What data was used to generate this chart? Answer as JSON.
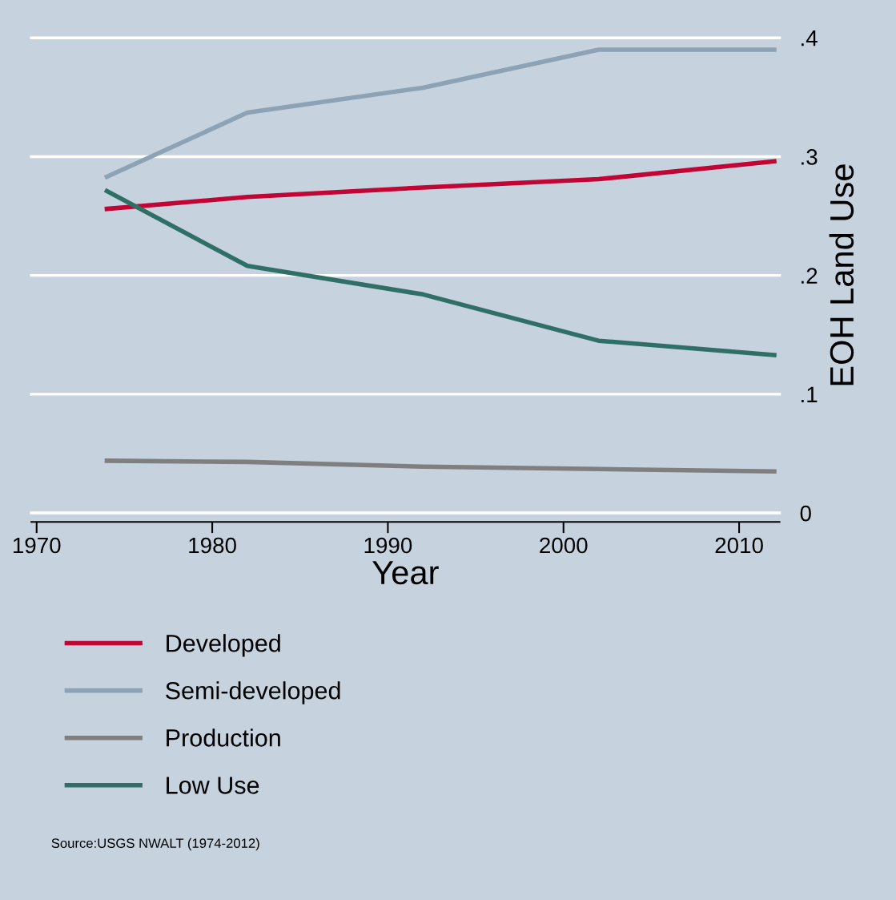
{
  "chart_data": {
    "type": "line",
    "xlabel": "Year",
    "ylabel": "EOH Land Use",
    "x": [
      1974,
      1982,
      1992,
      2002,
      2012
    ],
    "series": [
      {
        "name": "Developed",
        "color": "#c10534",
        "values": [
          0.256,
          0.266,
          0.274,
          0.281,
          0.296
        ]
      },
      {
        "name": "Semi-developed",
        "color": "#8da2b5",
        "values": [
          0.283,
          0.337,
          0.358,
          0.39,
          0.39
        ]
      },
      {
        "name": "Production",
        "color": "#7f7f7f",
        "values": [
          0.044,
          0.043,
          0.039,
          0.037,
          0.035
        ]
      },
      {
        "name": "Low Use",
        "color": "#2f6f66",
        "values": [
          0.271,
          0.208,
          0.184,
          0.145,
          0.133
        ]
      }
    ],
    "xlim": [
      1969.7,
      2012.3
    ],
    "xticks": [
      1970,
      1980,
      1990,
      2000,
      2010
    ],
    "ylim": [
      0,
      0.4
    ],
    "yticks": [
      {
        "value": 0,
        "label": "0"
      },
      {
        "value": 0.1,
        "label": ".1"
      },
      {
        "value": 0.2,
        "label": ".2"
      },
      {
        "value": 0.3,
        "label": ".3"
      },
      {
        "value": 0.4,
        "label": ".4"
      }
    ],
    "grid": "y",
    "legend": "bottom",
    "marker": "none",
    "line_style": "solid",
    "annotations": [
      "Source:USGS NWALT (1974-2012)"
    ]
  }
}
